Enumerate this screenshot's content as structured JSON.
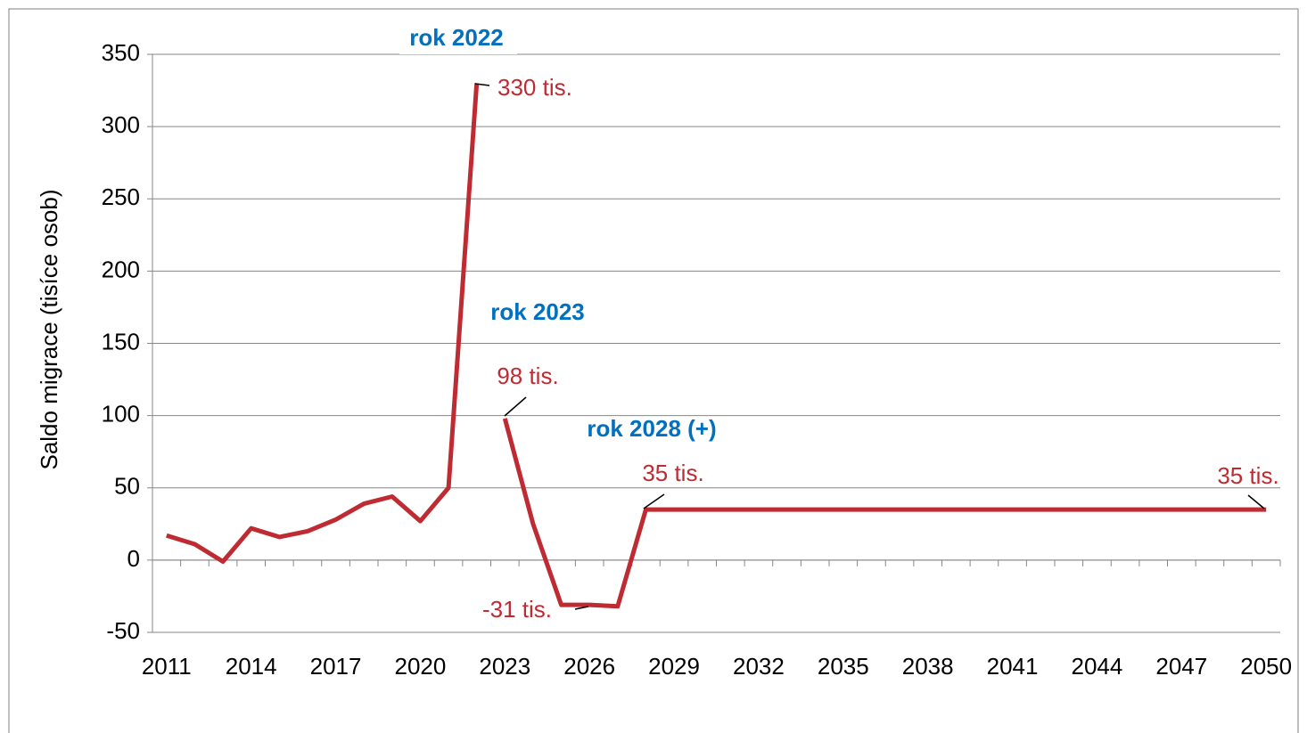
{
  "chart_data": {
    "type": "line",
    "y_label": "Saldo migrace (tisíce osob)",
    "x": [
      2011,
      2012,
      2013,
      2014,
      2015,
      2016,
      2017,
      2018,
      2019,
      2020,
      2021,
      2022,
      2023,
      2024,
      2025,
      2026,
      2027,
      2028,
      2029,
      2030,
      2031,
      2032,
      2033,
      2034,
      2035,
      2036,
      2037,
      2038,
      2039,
      2040,
      2041,
      2042,
      2043,
      2044,
      2045,
      2046,
      2047,
      2048,
      2049,
      2050
    ],
    "series": [
      {
        "color": "#be2b32",
        "values": [
          17,
          11,
          -1,
          22,
          16,
          20,
          28,
          39,
          44,
          27,
          50,
          330,
          null,
          null,
          null,
          null,
          null,
          null,
          null,
          null,
          null,
          null,
          null,
          null,
          null,
          null,
          null,
          null,
          null,
          null,
          null,
          null,
          null,
          null,
          null,
          null,
          null,
          null,
          null,
          null
        ]
      },
      {
        "color": "#be2b32",
        "values": [
          null,
          null,
          null,
          null,
          null,
          null,
          null,
          null,
          null,
          null,
          null,
          null,
          98,
          25,
          -31,
          -31,
          -32,
          35,
          35,
          35,
          35,
          35,
          35,
          35,
          35,
          35,
          35,
          35,
          35,
          35,
          35,
          35,
          35,
          35,
          35,
          35,
          35,
          35,
          35,
          35
        ]
      }
    ],
    "xlim": [
      2010.5,
      2050.5
    ],
    "xticks": [
      2011,
      2014,
      2017,
      2020,
      2023,
      2026,
      2029,
      2032,
      2035,
      2038,
      2041,
      2044,
      2047,
      2050
    ],
    "ylim": [
      -50,
      350
    ],
    "yticks": [
      -50,
      0,
      50,
      100,
      150,
      200,
      250,
      300,
      350
    ],
    "grid": true,
    "annotations": [
      {
        "text": "rok 2022",
        "color": "#0070c0"
      },
      {
        "text": "330 tis.",
        "color": "#be2b32"
      },
      {
        "text": "rok 2023",
        "color": "#0070c0"
      },
      {
        "text": "98 tis.",
        "color": "#be2b32"
      },
      {
        "text": "rok 2028 (+)",
        "color": "#0070c0"
      },
      {
        "text": "35 tis.",
        "color": "#be2b32"
      },
      {
        "text": "-31 tis.",
        "color": "#be2b32"
      },
      {
        "text": "35 tis.",
        "color": "#be2b32"
      }
    ]
  }
}
